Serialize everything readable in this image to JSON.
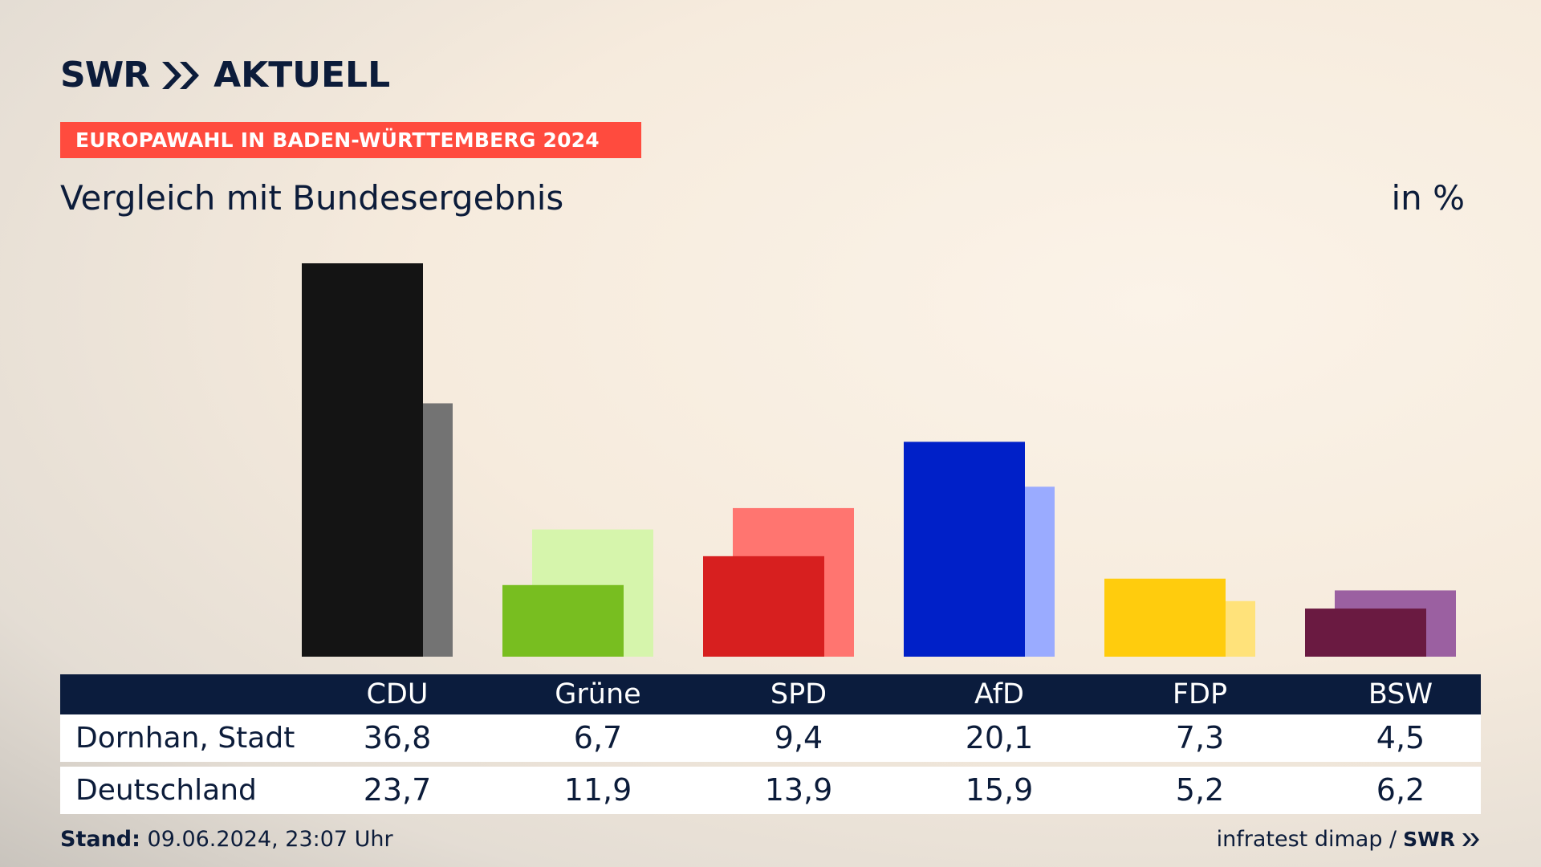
{
  "brand": {
    "logo_text": "SWR",
    "name": "AKTUELL",
    "color": "#0c1c3a"
  },
  "banner": {
    "text": "EUROPAWAHL IN BADEN-WÜRTTEMBERG 2024",
    "color": "#ff4b3e"
  },
  "subtitle": "Vergleich mit Bundesergebnis",
  "unit": "in %",
  "table": {
    "row_labels": [
      "Dornhan, Stadt",
      "Deutschland"
    ]
  },
  "chart_data": {
    "type": "bar",
    "categories": [
      "CDU",
      "Grüne",
      "SPD",
      "AfD",
      "FDP",
      "BSW"
    ],
    "series": [
      {
        "name": "Dornhan, Stadt",
        "values": [
          "36,8",
          "6,7",
          "9,4",
          "20,1",
          "7,3",
          "4,5"
        ],
        "numeric": [
          36.8,
          6.7,
          9.4,
          20.1,
          7.3,
          4.5
        ]
      },
      {
        "name": "Deutschland",
        "values": [
          "23,7",
          "11,9",
          "13,9",
          "15,9",
          "5,2",
          "6,2"
        ],
        "numeric": [
          23.7,
          11.9,
          13.9,
          15.9,
          5.2,
          6.2
        ]
      }
    ],
    "colors": {
      "local": [
        "#141414",
        "#78be20",
        "#d71f1f",
        "#0020c8",
        "#ffcc0d",
        "#6a1a41"
      ],
      "national": [
        "#737373",
        "#d6f5ac",
        "#ff7570",
        "#9aabff",
        "#ffe27a",
        "#9b60a1"
      ]
    },
    "ylim": [
      0,
      36.8
    ],
    "grid": false
  },
  "footer": {
    "stand_label": "Stand:",
    "stand_value": "09.06.2024, 23:07 Uhr",
    "source": "infratest dimap /",
    "logo_text": "SWR"
  }
}
